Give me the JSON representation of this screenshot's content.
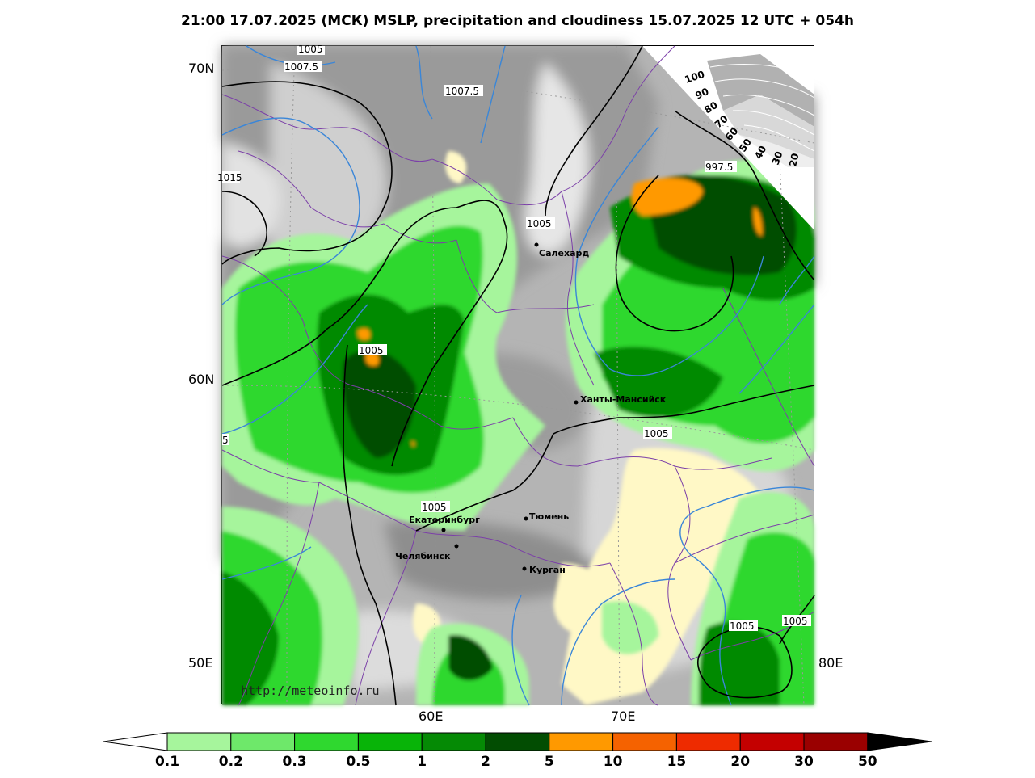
{
  "title": "21:00 17.07.2025 (МСК) MSLP, precipitation and cloudiness 15.07.2025 12 UTC + 054h",
  "watermark": "http://meteoinfo.ru",
  "axis_labels": {
    "lat_70": "70N",
    "lat_60": "60N",
    "lon_50": "50E",
    "lon_60": "60E",
    "lon_70": "70E",
    "lon_80": "80E"
  },
  "cities": [
    {
      "name": "Салехард"
    },
    {
      "name": "Ханты-Мансийск"
    },
    {
      "name": "Екатеринбург"
    },
    {
      "name": "Тюмень"
    },
    {
      "name": "Челябинск"
    },
    {
      "name": "Курган"
    }
  ],
  "isobar_labels": [
    "1005",
    "1007.5",
    "1007.5",
    "1015",
    "1005",
    "997.5",
    "1005",
    "1005",
    "1005",
    "5",
    "1005",
    "1005"
  ],
  "cloudiness_scale": {
    "labels": [
      "100",
      "90",
      "80",
      "70",
      "60",
      "50",
      "40",
      "30",
      "20"
    ]
  },
  "precip_scale": {
    "labels": [
      "0.1",
      "0.2",
      "0.3",
      "0.5",
      "1",
      "2",
      "5",
      "10",
      "15",
      "20",
      "30",
      "50"
    ],
    "colors": [
      "#a6f59c",
      "#6ee86a",
      "#2fd82f",
      "#08b408",
      "#058a05",
      "#024d02",
      "#ff9900",
      "#f56200",
      "#ee2b00",
      "#c40000",
      "#9a0000"
    ],
    "under_color": "#ffffff",
    "over_color": "#000000"
  },
  "colors": {
    "isobar_black": "#000000",
    "isobar_blue": "#3a86d8",
    "border_purple": "#7b3fa8",
    "cloud_dark": "#8c8c8c",
    "cloud_light": "#dcdcdc",
    "clear_yellow": "#fff8c6"
  }
}
